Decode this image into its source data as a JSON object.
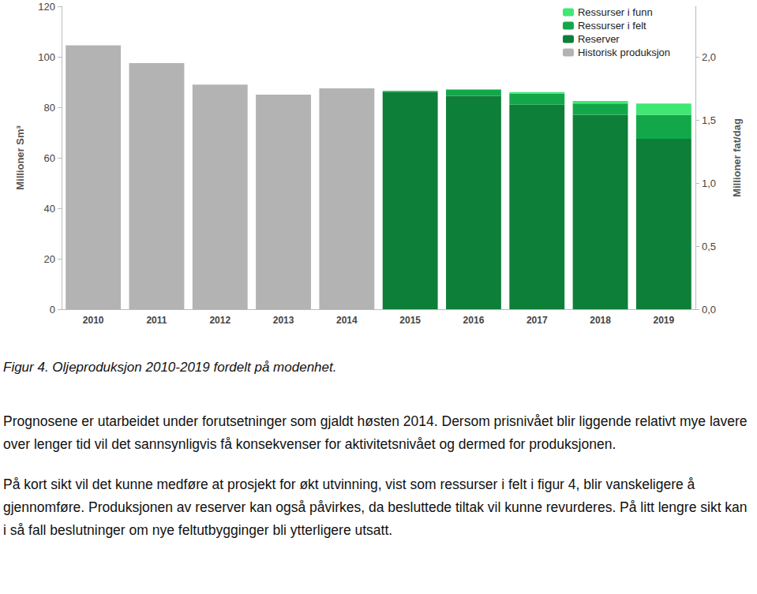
{
  "chart_data": {
    "type": "bar",
    "stacked": true,
    "grid": false,
    "legend": "upper right",
    "ylabel": "Millioner Sm³",
    "y2label": "Millioner fat/dag",
    "categories": [
      "2010",
      "2011",
      "2012",
      "2013",
      "2014",
      "2015",
      "2016",
      "2017",
      "2018",
      "2019"
    ],
    "series": [
      {
        "name": "Historisk produksjon",
        "color": "#b3b3b3",
        "values": [
          104.5,
          97.5,
          89,
          85,
          87.5,
          null,
          null,
          null,
          null,
          null
        ]
      },
      {
        "name": "Reserver",
        "color": "#0e7f38",
        "values": [
          null,
          null,
          null,
          null,
          null,
          86,
          84.5,
          81,
          77,
          67.5
        ]
      },
      {
        "name": "Ressurser i felt",
        "color": "#12a84a",
        "values": [
          null,
          null,
          null,
          null,
          null,
          0.5,
          2.5,
          4.5,
          4.5,
          9.5
        ]
      },
      {
        "name": "Ressurser i funn",
        "color": "#3ee872",
        "values": [
          null,
          null,
          null,
          null,
          null,
          null,
          null,
          0.5,
          1,
          4.5
        ]
      }
    ],
    "ylim": [
      0,
      120
    ],
    "yticks": [
      0,
      20,
      40,
      60,
      80,
      100,
      120
    ],
    "y2lim": [
      0,
      2.4
    ],
    "y2ticks": [
      {
        "value": 0,
        "label": "0,0"
      },
      {
        "value": 0.5,
        "label": "0,5"
      },
      {
        "value": 1,
        "label": "1,0"
      },
      {
        "value": 1.5,
        "label": "1,5"
      },
      {
        "value": 2,
        "label": "2,0"
      }
    ]
  },
  "caption": "Figur 4. Oljeproduksjon 2010-2019 fordelt på modenhet.",
  "paragraphs": [
    "Prognosene er utarbeidet under forutsetninger som gjaldt høsten 2014. Dersom prisnivået blir liggende relativt mye lavere over lenger tid vil det sannsynligvis få konsekvenser for aktivitetsnivået og dermed for produksjonen.",
    "På kort sikt vil det kunne medføre at prosjekt for økt utvinning, vist som ressurser i felt i figur 4, blir vanskeligere å gjennomføre. Produksjonen av reserver kan også påvirkes, da besluttede tiltak vil kunne revurderes. På litt lengre sikt kan i så fall beslutninger om nye feltutbygginger bli ytterligere utsatt."
  ]
}
